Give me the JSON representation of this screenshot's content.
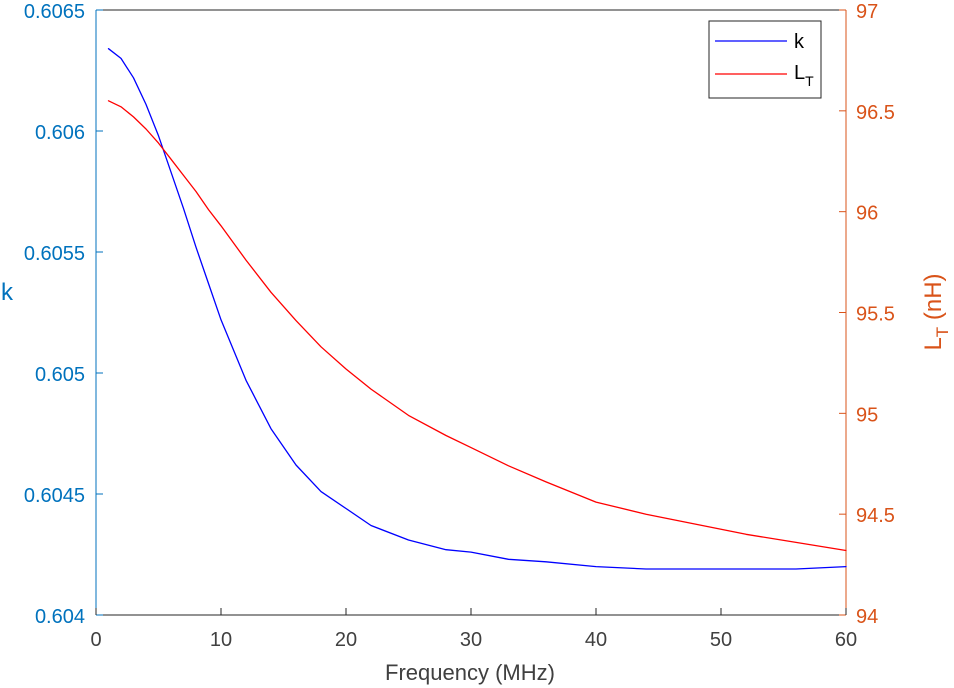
{
  "chart_data": {
    "type": "line",
    "title": "",
    "xlabel": "Frequency (MHz)",
    "xlim": [
      0,
      60
    ],
    "xticks": [
      0,
      10,
      20,
      30,
      40,
      50,
      60
    ],
    "left_axis": {
      "label": "k",
      "color": "#0072bd",
      "ylim": [
        0.604,
        0.6065
      ],
      "ticks": [
        0.604,
        0.6045,
        0.605,
        0.6055,
        0.606,
        0.6065
      ],
      "tick_labels": [
        "0.604",
        "0.6045",
        "0.605",
        "0.6055",
        "0.606",
        "0.6065"
      ]
    },
    "right_axis": {
      "label_main": "L",
      "label_sub": "T",
      "label_unit": " (nH)",
      "color": "#d95319",
      "ylim": [
        94,
        97
      ],
      "ticks": [
        94,
        94.5,
        95,
        95.5,
        96,
        96.5,
        97
      ],
      "tick_labels": [
        "94",
        "94.5",
        "95",
        "95.5",
        "96",
        "96.5",
        "97"
      ]
    },
    "grid": false,
    "legend": {
      "placement": "top-right",
      "entries": [
        {
          "main": "k",
          "sub": ""
        },
        {
          "main": "L",
          "sub": "T"
        }
      ]
    },
    "series": [
      {
        "name": "k",
        "axis": "left",
        "color": "#0000ff",
        "x": [
          1,
          2,
          3,
          4,
          5,
          6,
          7,
          8,
          9,
          10,
          12,
          14,
          16,
          18,
          20,
          22,
          25,
          28,
          30,
          33,
          36,
          40,
          44,
          48,
          52,
          56,
          60
        ],
        "y": [
          0.60634,
          0.6063,
          0.60622,
          0.60611,
          0.60598,
          0.60583,
          0.60568,
          0.60552,
          0.60537,
          0.60522,
          0.60497,
          0.60477,
          0.60462,
          0.60451,
          0.60444,
          0.60437,
          0.60431,
          0.60427,
          0.60426,
          0.60423,
          0.60422,
          0.6042,
          0.60419,
          0.60419,
          0.60419,
          0.60419,
          0.6042
        ]
      },
      {
        "name": "LT",
        "axis": "right",
        "color": "#ff0000",
        "x": [
          1,
          2,
          3,
          4,
          5,
          6,
          7,
          8,
          9,
          10,
          12,
          14,
          16,
          18,
          20,
          22,
          25,
          28,
          30,
          33,
          36,
          40,
          44,
          48,
          52,
          56,
          60
        ],
        "y": [
          96.55,
          96.52,
          96.47,
          96.41,
          96.34,
          96.26,
          96.18,
          96.1,
          96.01,
          95.93,
          95.76,
          95.6,
          95.46,
          95.33,
          95.22,
          95.12,
          94.99,
          94.89,
          94.83,
          94.74,
          94.66,
          94.56,
          94.5,
          94.45,
          94.4,
          94.36,
          94.32
        ]
      }
    ]
  }
}
